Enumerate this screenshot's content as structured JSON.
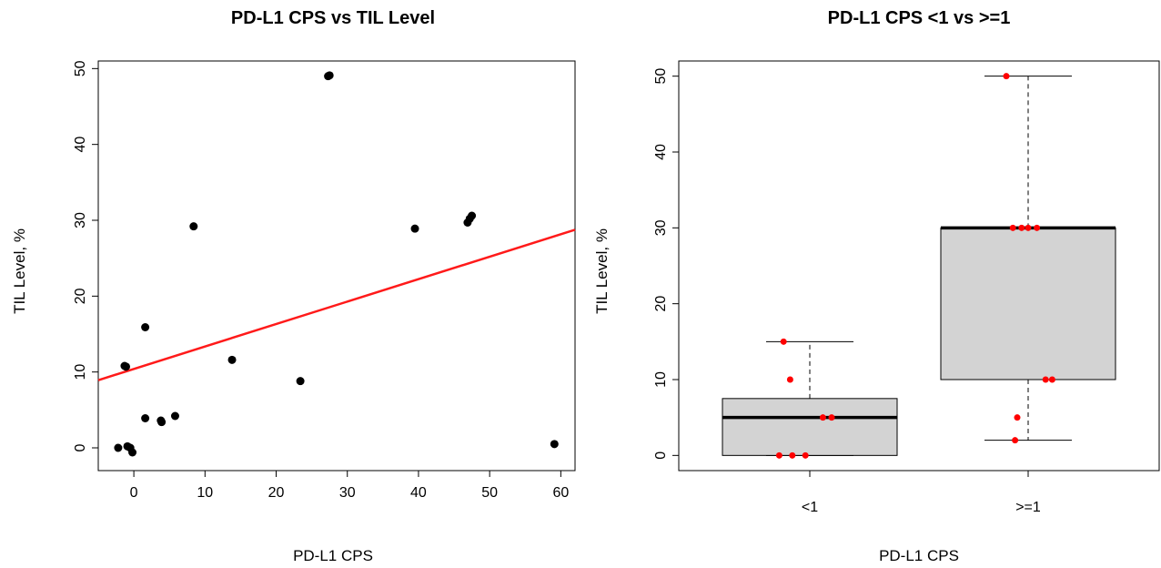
{
  "chart_data": [
    {
      "type": "scatter",
      "title": "PD-L1 CPS vs TIL Level",
      "xlabel": "PD-L1 CPS",
      "ylabel": "TIL Level, %",
      "xlim": [
        -5,
        62
      ],
      "ylim": [
        -3,
        51
      ],
      "xticks": [
        0,
        10,
        20,
        30,
        40,
        50,
        60
      ],
      "yticks": [
        0,
        10,
        20,
        30,
        40,
        50
      ],
      "point_color": "#000000",
      "grid": false,
      "points": [
        {
          "x": -2.2,
          "y": 0.0
        },
        {
          "x": -1.3,
          "y": 10.8
        },
        {
          "x": -1.1,
          "y": 10.7
        },
        {
          "x": -0.9,
          "y": 0.2
        },
        {
          "x": -0.5,
          "y": 0.0
        },
        {
          "x": -0.2,
          "y": -0.6
        },
        {
          "x": 1.6,
          "y": 15.9
        },
        {
          "x": 1.6,
          "y": 3.9
        },
        {
          "x": 3.8,
          "y": 3.6
        },
        {
          "x": 3.9,
          "y": 3.4
        },
        {
          "x": 5.8,
          "y": 4.2
        },
        {
          "x": 8.4,
          "y": 29.2
        },
        {
          "x": 13.8,
          "y": 11.6
        },
        {
          "x": 23.4,
          "y": 8.8
        },
        {
          "x": 27.3,
          "y": 49.0
        },
        {
          "x": 27.5,
          "y": 49.1
        },
        {
          "x": 39.5,
          "y": 28.9
        },
        {
          "x": 46.9,
          "y": 29.7
        },
        {
          "x": 47.2,
          "y": 30.2
        },
        {
          "x": 47.5,
          "y": 30.6
        },
        {
          "x": 59.1,
          "y": 0.5
        }
      ],
      "fit_line": {
        "color": "#ff1a1a",
        "intercept": 10.4,
        "slope": 0.296
      }
    },
    {
      "type": "box",
      "title": "PD-L1 CPS <1 vs >=1",
      "xlabel": "PD-L1 CPS",
      "ylabel": "TIL Level, %",
      "ylim": [
        -2,
        52
      ],
      "yticks": [
        0,
        10,
        20,
        30,
        40,
        50
      ],
      "categories": [
        "<1",
        ">=1"
      ],
      "box_fill": "#d3d3d3",
      "point_color": "#ff0000",
      "boxes": [
        {
          "category": "<1",
          "min": 0,
          "q1": 0,
          "median": 5,
          "q3": 7.5,
          "max": 15,
          "points": [
            {
              "dx": -0.12,
              "y": 15
            },
            {
              "dx": -0.09,
              "y": 10
            },
            {
              "dx": 0.06,
              "y": 5
            },
            {
              "dx": 0.1,
              "y": 5
            },
            {
              "dx": -0.14,
              "y": 0
            },
            {
              "dx": -0.08,
              "y": 0
            },
            {
              "dx": -0.02,
              "y": 0
            }
          ]
        },
        {
          "category": ">=1",
          "min": 2,
          "q1": 10,
          "median": 30,
          "q3": 30,
          "max": 50,
          "points": [
            {
              "dx": -0.1,
              "y": 50
            },
            {
              "dx": -0.07,
              "y": 30
            },
            {
              "dx": -0.03,
              "y": 30
            },
            {
              "dx": 0.0,
              "y": 30
            },
            {
              "dx": 0.04,
              "y": 30
            },
            {
              "dx": 0.08,
              "y": 10
            },
            {
              "dx": 0.11,
              "y": 10
            },
            {
              "dx": -0.05,
              "y": 5
            },
            {
              "dx": -0.06,
              "y": 2
            }
          ]
        }
      ]
    }
  ]
}
